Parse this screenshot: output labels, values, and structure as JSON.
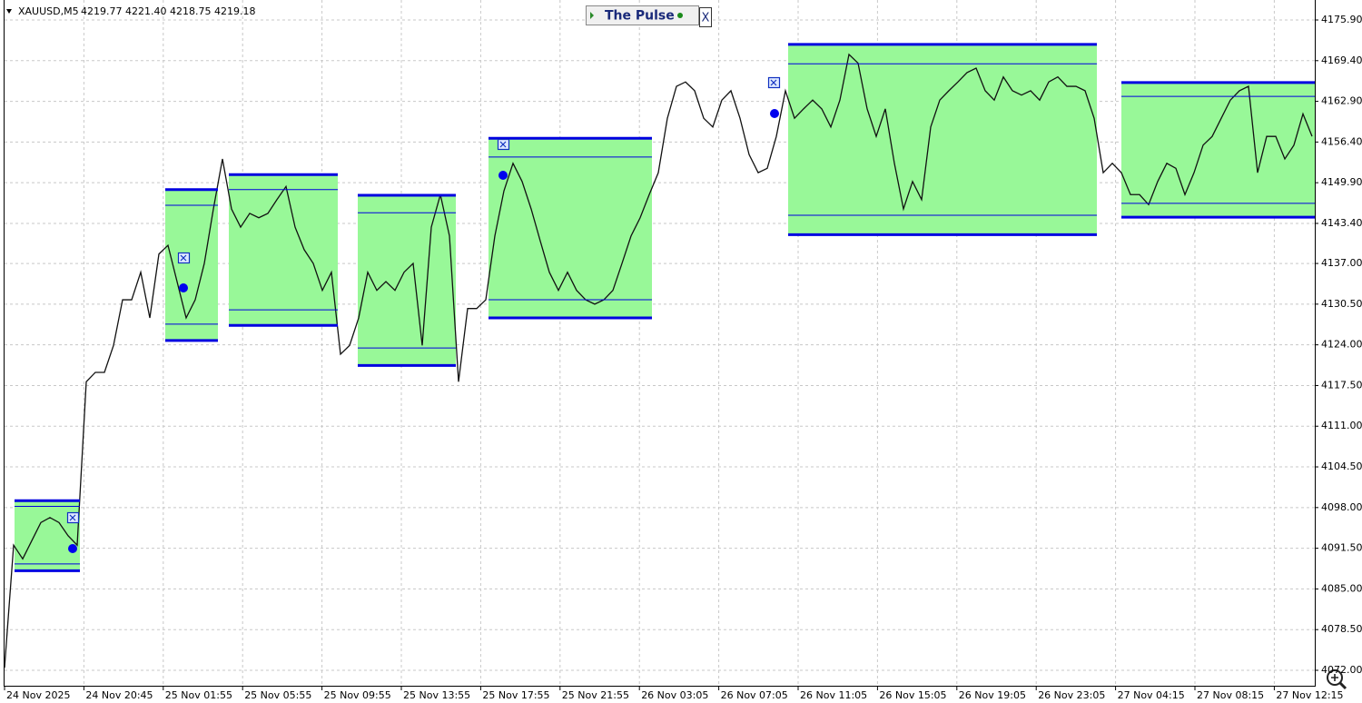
{
  "header": {
    "symbol": "XAUUSD,M5",
    "quote": "4219.77 4221.40 4218.75 4219.18"
  },
  "panel": {
    "title": "The Pulse",
    "close": "X"
  },
  "price_axis": {
    "ticks": [
      {
        "value": 4175.9,
        "label": "4175.90"
      },
      {
        "value": 4169.4,
        "label": "4169.40"
      },
      {
        "value": 4162.9,
        "label": "4162.90"
      },
      {
        "value": 4156.4,
        "label": "4156.40"
      },
      {
        "value": 4149.9,
        "label": "4149.90"
      },
      {
        "value": 4143.4,
        "label": "4143.40"
      },
      {
        "value": 4137,
        "label": "4137.00"
      },
      {
        "value": 4130.5,
        "label": "4130.50"
      },
      {
        "value": 4124,
        "label": "4124.00"
      },
      {
        "value": 4117.5,
        "label": "4117.50"
      },
      {
        "value": 4111,
        "label": "4111.00"
      },
      {
        "value": 4104.5,
        "label": "4104.50"
      },
      {
        "value": 4098,
        "label": "4098.00"
      },
      {
        "value": 4091.5,
        "label": "4091.50"
      },
      {
        "value": 4085,
        "label": "4085.00"
      },
      {
        "value": 4078.5,
        "label": "4078.50"
      },
      {
        "value": 4072,
        "label": "4072.00"
      }
    ]
  },
  "time_axis": {
    "labels": [
      "24 Nov 2025",
      "24 Nov 20:45",
      "25 Nov 01:55",
      "25 Nov 05:55",
      "25 Nov 09:55",
      "25 Nov 13:55",
      "25 Nov 17:55",
      "25 Nov 21:55",
      "26 Nov 03:05",
      "26 Nov 07:05",
      "26 Nov 11:05",
      "26 Nov 15:05",
      "26 Nov 19:05",
      "26 Nov 23:05",
      "27 Nov 04:15",
      "27 Nov 08:15",
      "27 Nov 12:15"
    ]
  },
  "prices": [
    4072.4,
    4092.0,
    4089.8,
    4092.7,
    4095.6,
    4096.4,
    4095.6,
    4093.5,
    4092.0,
    4118.1,
    4119.6,
    4119.6,
    4123.9,
    4131.2,
    4131.2,
    4135.6,
    4128.3,
    4138.5,
    4139.9,
    4134.1,
    4128.3,
    4131.2,
    4137.0,
    4145.7,
    4153.7,
    4145.7,
    4142.8,
    4145.0,
    4144.3,
    4145.0,
    4147.2,
    4149.3,
    4142.8,
    4139.2,
    4137.0,
    4132.7,
    4135.6,
    4122.5,
    4123.9,
    4128.3,
    4135.6,
    4132.7,
    4134.1,
    4132.7,
    4135.6,
    4137.0,
    4123.9,
    4142.8,
    4148.0,
    4141.4,
    4118.1,
    4129.8,
    4129.8,
    4131.2,
    4141.4,
    4148.6,
    4153.0,
    4150.1,
    4145.7,
    4140.6,
    4135.6,
    4132.7,
    4135.6,
    4132.7,
    4131.2,
    4130.5,
    4131.2,
    4132.7,
    4137.0,
    4141.4,
    4144.3,
    4148.0,
    4151.5,
    4160.2,
    4165.3,
    4166.0,
    4164.6,
    4160.2,
    4158.8,
    4163.1,
    4164.6,
    4160.2,
    4154.4,
    4151.5,
    4152.2,
    4157.3,
    4164.6,
    4160.2,
    4161.7,
    4163.1,
    4161.7,
    4158.8,
    4163.1,
    4170.4,
    4169.0,
    4161.7,
    4157.3,
    4161.7,
    4153.0,
    4145.7,
    4150.1,
    4147.2,
    4158.8,
    4163.1,
    4164.6,
    4166.0,
    4167.5,
    4168.2,
    4164.6,
    4163.1,
    4166.8,
    4164.6,
    4163.9,
    4164.6,
    4163.1,
    4166.0,
    4166.8,
    4165.3,
    4165.3,
    4164.6,
    4160.2,
    4151.5,
    4153.0,
    4151.5,
    4148.0,
    4148.0,
    4146.4,
    4150.1,
    4153.0,
    4152.2,
    4148.0,
    4151.5,
    4155.9,
    4157.3,
    4160.2,
    4163.1,
    4164.6,
    4165.3,
    4151.5,
    4157.3,
    4157.3,
    4153.7,
    4155.9,
    4160.9,
    4157.3
  ],
  "boxes": [
    {
      "from_bar": 1.1,
      "to_bar": 8.3,
      "top": 4099.1,
      "bottom": 4087.9,
      "upper": 4098.2,
      "lower": 4089.0
    },
    {
      "from_bar": 17.7,
      "to_bar": 23.5,
      "top": 4148.8,
      "bottom": 4124.7,
      "upper": 4146.3,
      "lower": 4127.3
    },
    {
      "from_bar": 24.7,
      "to_bar": 36.7,
      "top": 4151.2,
      "bottom": 4127.1,
      "upper": 4148.8,
      "lower": 4129.6
    },
    {
      "from_bar": 38.9,
      "to_bar": 49.7,
      "top": 4147.9,
      "bottom": 4120.7,
      "upper": 4145.1,
      "lower": 4123.5
    },
    {
      "from_bar": 53.3,
      "to_bar": 71.3,
      "top": 4157.0,
      "bottom": 4128.3,
      "upper": 4154.0,
      "lower": 4131.2
    },
    {
      "from_bar": 86.3,
      "to_bar": 120.3,
      "top": 4172.0,
      "bottom": 4141.6,
      "upper": 4168.9,
      "lower": 4144.7
    },
    {
      "from_bar": 123,
      "to_bar": 144.3,
      "top": 4165.9,
      "bottom": 4144.4,
      "upper": 4163.7,
      "lower": 4146.6
    }
  ]
}
